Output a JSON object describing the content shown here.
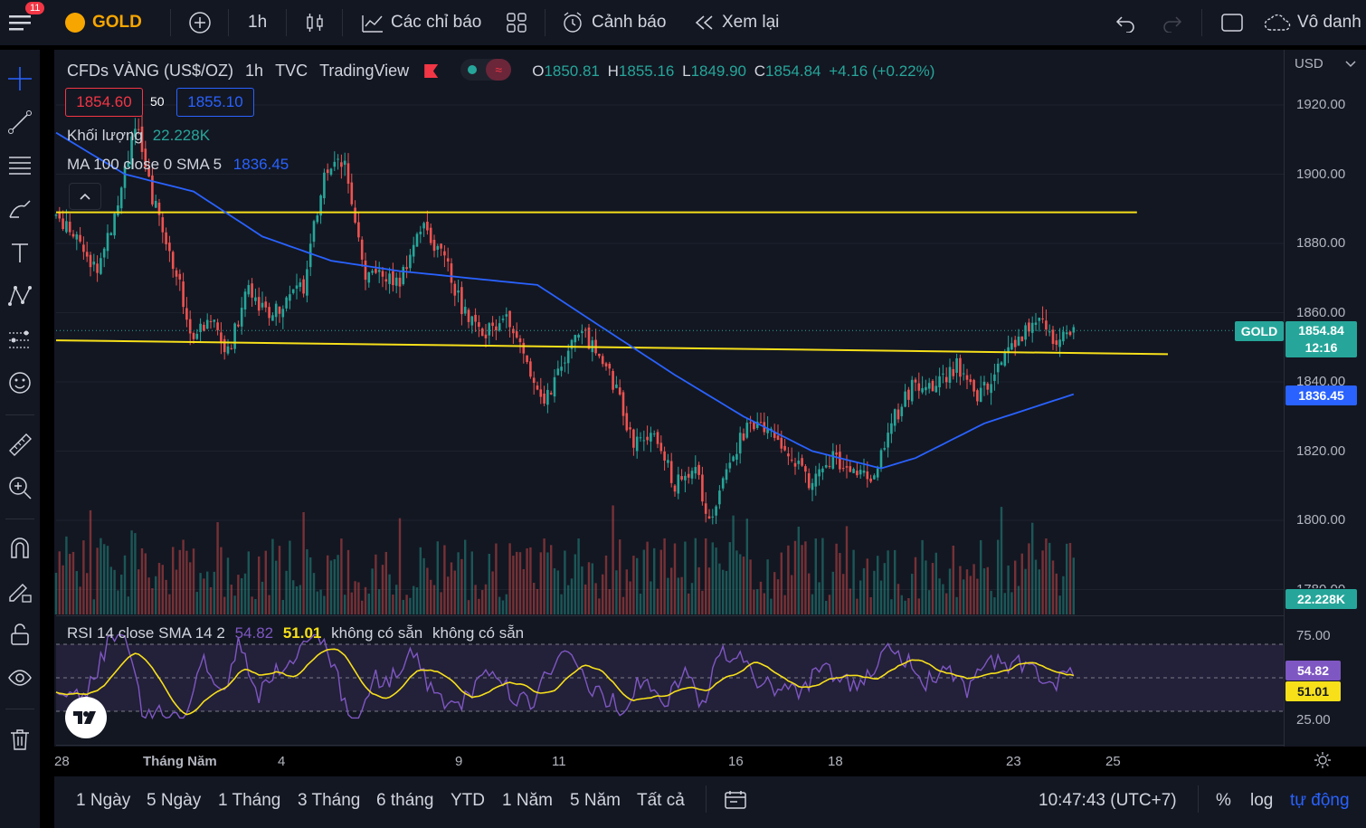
{
  "topbar": {
    "notif_count": "11",
    "symbol": "GOLD",
    "interval": "1h",
    "indicators_label": "Các chỉ báo",
    "alerts_label": "Cảnh báo",
    "replay_label": "Xem lại",
    "layout_name": "Vô danh"
  },
  "legend": {
    "title": "CFDs VÀNG (US$/OZ)",
    "interval": "1h",
    "source": "TVC",
    "provider": "TradingView",
    "o_label": "O",
    "o": "1850.81",
    "h_label": "H",
    "h": "1855.16",
    "l_label": "L",
    "l": "1849.90",
    "c_label": "C",
    "c": "1854.84",
    "change": "+4.16 (+0.22%)",
    "bid": "1854.60",
    "spread": "50",
    "ask": "1855.10",
    "volume_label": "Khối lượng",
    "volume_value": "22.228K",
    "ma_label": "MA 100 close 0 SMA 5",
    "ma_value": "1836.45"
  },
  "rsi_legend": {
    "label": "RSI 14 close SMA 14 2",
    "rsi_value": "54.82",
    "sma_value": "51.01",
    "na1": "không có sẵn",
    "na2": "không có sẵn"
  },
  "price_axis": {
    "currency": "USD",
    "ticks": [
      "1920.00",
      "1900.00",
      "1880.00",
      "1860.00",
      "1840.00",
      "1820.00",
      "1800.00",
      "1780.00"
    ],
    "gold_tag": "GOLD",
    "last_price": "1854.84",
    "countdown": "12:16",
    "ma_price": "1836.45",
    "volume_tag": "22.228K"
  },
  "rsi_axis": {
    "ticks": [
      "75.00",
      "25.00"
    ],
    "rsi_tag": "54.82",
    "sma_tag": "51.01"
  },
  "time_axis": {
    "labels": [
      "28",
      "Tháng Năm",
      "4",
      "9",
      "11",
      "16",
      "18",
      "23",
      "25"
    ]
  },
  "bottombar": {
    "ranges": [
      "1 Ngày",
      "5 Ngày",
      "1 Tháng",
      "3 Tháng",
      "6 tháng",
      "YTD",
      "1 Năm",
      "5 Năm",
      "Tất cả"
    ],
    "time": "10:47:43 (UTC+7)",
    "percent": "%",
    "log": "log",
    "auto": "tự động"
  },
  "colors": {
    "background": "#131722",
    "up": "#26a69a",
    "down": "#ef5350",
    "ma": "#2962ff",
    "trendline": "#f7e01a",
    "rsi": "#7e57c2",
    "rsi_sma": "#f7e01a",
    "accent": "#2962ff"
  },
  "chart_data": {
    "type": "candlestick",
    "symbol": "GOLD",
    "timeframe": "1h",
    "ylim": [
      1775,
      1930
    ],
    "price_path": [
      {
        "x": 0,
        "y": 1888
      },
      {
        "x": 8,
        "y": 1878
      },
      {
        "x": 12,
        "y": 1872
      },
      {
        "x": 18,
        "y": 1892
      },
      {
        "x": 23,
        "y": 1915
      },
      {
        "x": 28,
        "y": 1893
      },
      {
        "x": 34,
        "y": 1875
      },
      {
        "x": 40,
        "y": 1852
      },
      {
        "x": 46,
        "y": 1860
      },
      {
        "x": 50,
        "y": 1848
      },
      {
        "x": 56,
        "y": 1868
      },
      {
        "x": 62,
        "y": 1858
      },
      {
        "x": 68,
        "y": 1865
      },
      {
        "x": 72,
        "y": 1868
      },
      {
        "x": 78,
        "y": 1900
      },
      {
        "x": 84,
        "y": 1905
      },
      {
        "x": 90,
        "y": 1870
      },
      {
        "x": 96,
        "y": 1870
      },
      {
        "x": 100,
        "y": 1868
      },
      {
        "x": 106,
        "y": 1885
      },
      {
        "x": 112,
        "y": 1878
      },
      {
        "x": 118,
        "y": 1862
      },
      {
        "x": 124,
        "y": 1852
      },
      {
        "x": 130,
        "y": 1860
      },
      {
        "x": 136,
        "y": 1848
      },
      {
        "x": 142,
        "y": 1835
      },
      {
        "x": 148,
        "y": 1845
      },
      {
        "x": 152,
        "y": 1855
      },
      {
        "x": 158,
        "y": 1848
      },
      {
        "x": 164,
        "y": 1835
      },
      {
        "x": 168,
        "y": 1822
      },
      {
        "x": 174,
        "y": 1825
      },
      {
        "x": 180,
        "y": 1810
      },
      {
        "x": 186,
        "y": 1815
      },
      {
        "x": 190,
        "y": 1800
      },
      {
        "x": 196,
        "y": 1818
      },
      {
        "x": 202,
        "y": 1828
      },
      {
        "x": 208,
        "y": 1825
      },
      {
        "x": 214,
        "y": 1818
      },
      {
        "x": 220,
        "y": 1810
      },
      {
        "x": 226,
        "y": 1818
      },
      {
        "x": 232,
        "y": 1815
      },
      {
        "x": 238,
        "y": 1812
      },
      {
        "x": 244,
        "y": 1830
      },
      {
        "x": 250,
        "y": 1840
      },
      {
        "x": 256,
        "y": 1838
      },
      {
        "x": 262,
        "y": 1845
      },
      {
        "x": 268,
        "y": 1835
      },
      {
        "x": 274,
        "y": 1845
      },
      {
        "x": 280,
        "y": 1852
      },
      {
        "x": 286,
        "y": 1860
      },
      {
        "x": 290,
        "y": 1852
      },
      {
        "x": 296,
        "y": 1854.84
      }
    ],
    "ma_path": [
      {
        "x": 0,
        "y": 1912
      },
      {
        "x": 20,
        "y": 1900
      },
      {
        "x": 40,
        "y": 1895
      },
      {
        "x": 60,
        "y": 1882
      },
      {
        "x": 80,
        "y": 1875
      },
      {
        "x": 100,
        "y": 1872
      },
      {
        "x": 120,
        "y": 1870
      },
      {
        "x": 140,
        "y": 1868
      },
      {
        "x": 160,
        "y": 1855
      },
      {
        "x": 180,
        "y": 1842
      },
      {
        "x": 200,
        "y": 1830
      },
      {
        "x": 220,
        "y": 1820
      },
      {
        "x": 240,
        "y": 1815
      },
      {
        "x": 250,
        "y": 1818
      },
      {
        "x": 270,
        "y": 1828
      },
      {
        "x": 296,
        "y": 1836.45
      }
    ],
    "resistance_line": {
      "from": {
        "x": 0,
        "y": 1889
      },
      "to": {
        "x": 296,
        "y": 1889
      }
    },
    "support_line": {
      "from": {
        "x": 0,
        "y": 1852
      },
      "to": {
        "x": 305,
        "y": 1848
      }
    },
    "rsi": {
      "ylim": [
        0,
        100
      ],
      "overbought": 75,
      "oversold": 25,
      "last": 54.82,
      "sma_last": 51.01
    }
  }
}
